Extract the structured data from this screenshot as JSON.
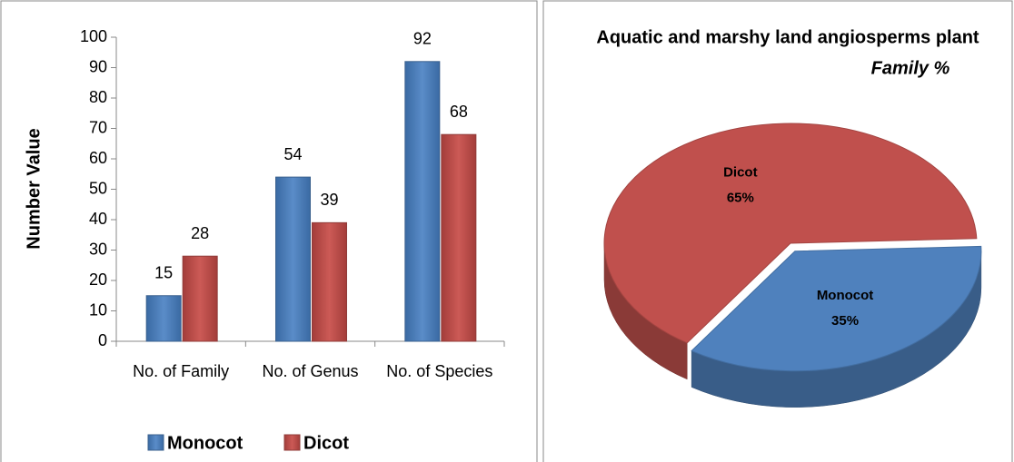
{
  "chart_data": [
    {
      "type": "bar",
      "ylabel": "Number Value",
      "categories": [
        "No. of Family",
        "No. of Genus",
        "No. of Species"
      ],
      "series": [
        {
          "name": "Monocot",
          "color": "#4f81bd",
          "values": [
            15,
            54,
            92
          ]
        },
        {
          "name": "Dicot",
          "color": "#c0504d",
          "values": [
            28,
            39,
            68
          ]
        }
      ],
      "ylim": [
        0,
        100
      ],
      "yticks": [
        0,
        10,
        20,
        30,
        40,
        50,
        60,
        70,
        80,
        90,
        100
      ],
      "legend": "bottom"
    },
    {
      "type": "pie",
      "title": "Aquatic and marshy land angiosperms plant",
      "title_emphasis": "Family %",
      "categories": [
        "Monocot",
        "Dicot"
      ],
      "values": [
        35,
        65
      ],
      "value_labels": [
        "35%",
        "65%"
      ],
      "colors": [
        "#4f81bd",
        "#c0504d"
      ]
    }
  ]
}
